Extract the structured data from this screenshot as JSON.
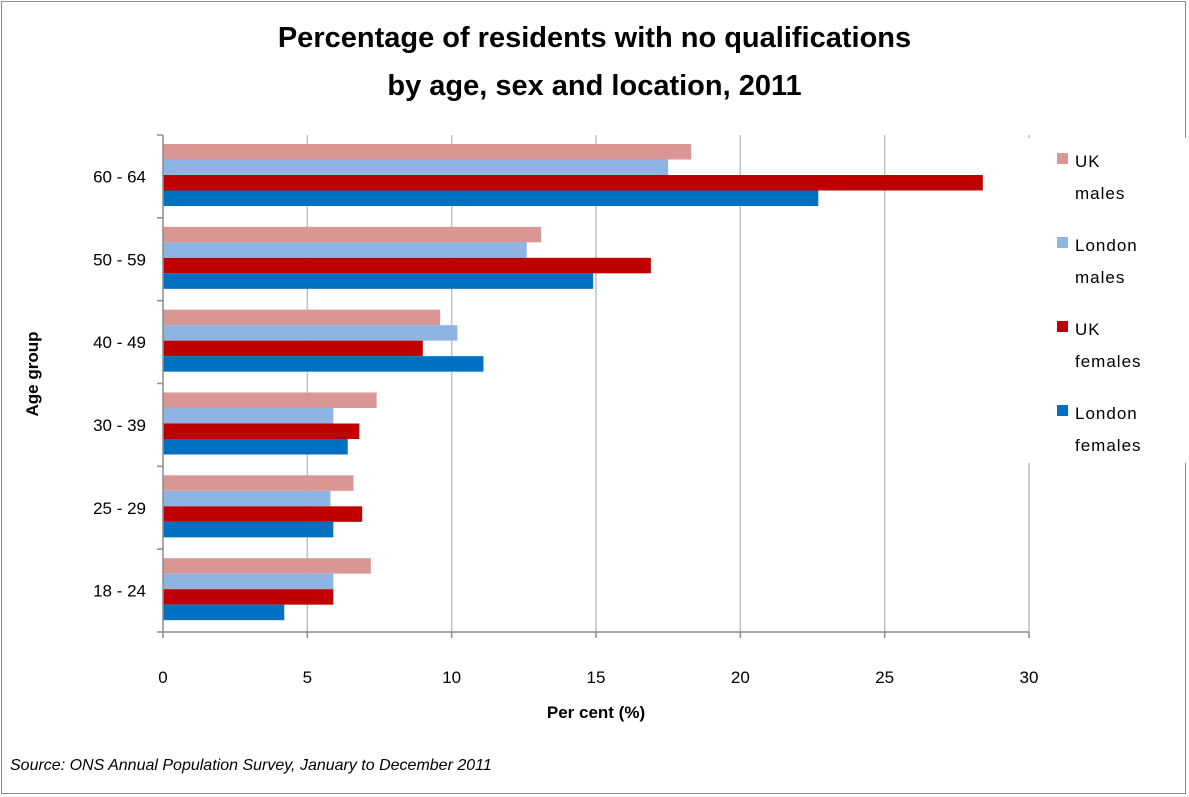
{
  "title": {
    "line1": "Percentage of residents with no qualifications",
    "line2": "by age, sex and location, 2011"
  },
  "source": "Source: ONS Annual Population Survey, January to December 2011",
  "chart_data": {
    "type": "bar",
    "orientation": "horizontal",
    "title": "Percentage of residents with no qualifications by age, sex and location, 2011",
    "xlabel": "Per cent (%)",
    "ylabel": "Age group",
    "xlim": [
      0,
      30
    ],
    "xticks": [
      0,
      5,
      10,
      15,
      20,
      25,
      30
    ],
    "grid": true,
    "legend": "right",
    "categories": [
      "60 - 64",
      "50 - 59",
      "40 - 49",
      "30 - 39",
      "25 - 29",
      "18 - 24"
    ],
    "series": [
      {
        "name": "UK males",
        "legend_lines": [
          "UK",
          "males"
        ],
        "color": "#D99694",
        "values": [
          18.3,
          13.1,
          9.6,
          7.4,
          6.6,
          7.2
        ]
      },
      {
        "name": "London males",
        "legend_lines": [
          "London",
          "males"
        ],
        "color": "#8EB4E3",
        "values": [
          17.5,
          12.6,
          10.2,
          5.9,
          5.8,
          5.9
        ]
      },
      {
        "name": "UK females",
        "legend_lines": [
          "UK",
          "females"
        ],
        "color": "#C00000",
        "values": [
          28.4,
          16.9,
          9.0,
          6.8,
          6.9,
          5.9
        ]
      },
      {
        "name": "London females",
        "legend_lines": [
          "London",
          "females"
        ],
        "color": "#0070C0",
        "values": [
          22.7,
          14.9,
          11.1,
          6.4,
          5.9,
          4.2
        ]
      }
    ]
  }
}
